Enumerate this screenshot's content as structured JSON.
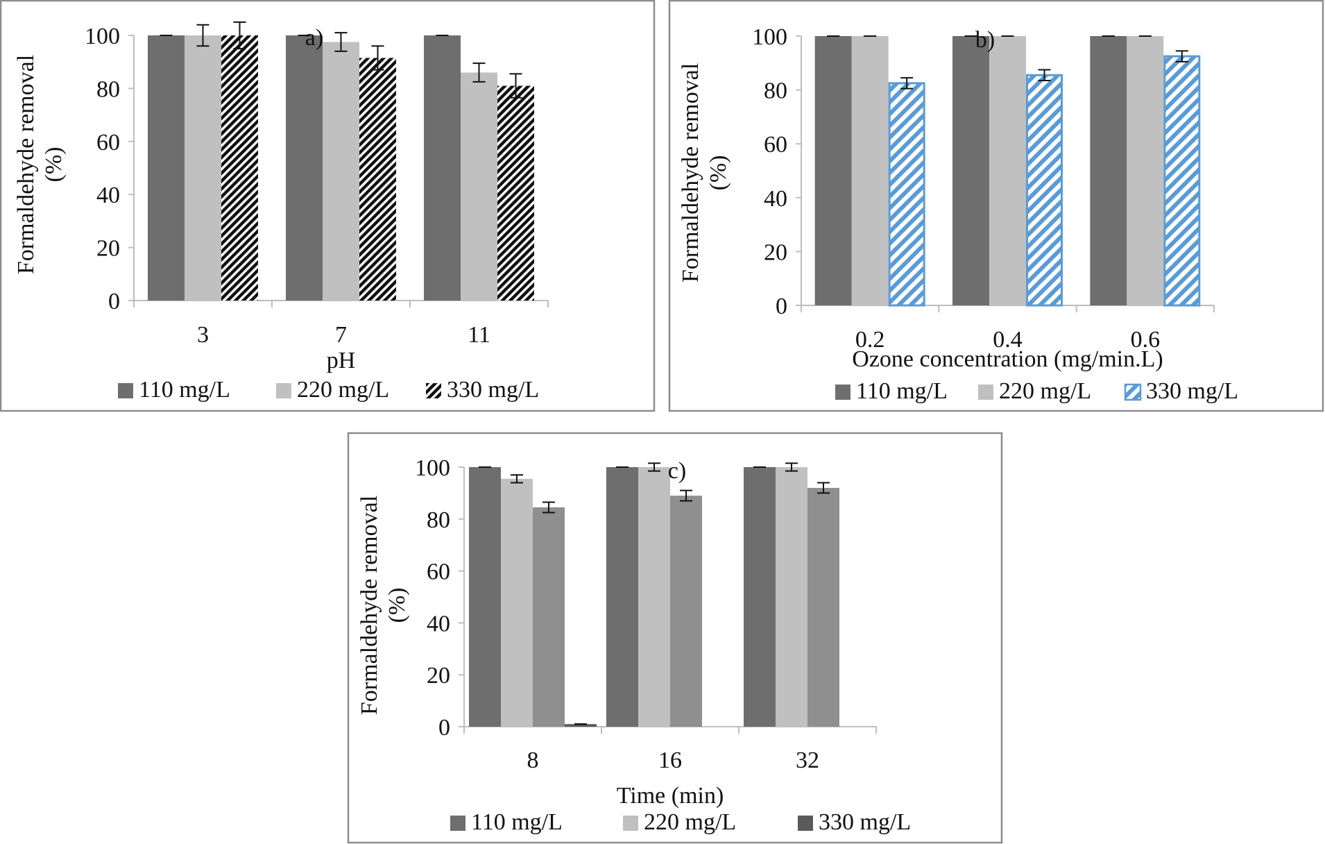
{
  "chart_data": [
    {
      "type": "bar",
      "panel_label": "a)",
      "xlabel": "pH",
      "ylabel_line1": "Formaldehyde removal",
      "ylabel_line2": "(%)",
      "ylim": [
        0,
        100
      ],
      "yticks": [
        "0",
        "20",
        "40",
        "60",
        "80",
        "100"
      ],
      "categories": [
        "3",
        "7",
        "11"
      ],
      "legend_position": "bottom",
      "series": [
        {
          "name": "110 mg/L",
          "values": [
            100,
            100,
            100
          ],
          "errors": [
            0,
            0,
            0
          ],
          "color": "#6e6e6e",
          "pattern": "solid"
        },
        {
          "name": "220 mg/L",
          "values": [
            100,
            97.5,
            86
          ],
          "errors": [
            4,
            3.5,
            3.5
          ],
          "color": "#c0c0c0",
          "pattern": "solid"
        },
        {
          "name": "330 mg/L",
          "values": [
            100,
            91.5,
            81
          ],
          "errors": [
            5,
            4.5,
            4.5
          ],
          "color": "#111111",
          "pattern": "black-diagonal"
        }
      ]
    },
    {
      "type": "bar",
      "panel_label": "b)",
      "xlabel": "Ozone concentration (mg/min.L)",
      "ylabel_line1": "Formaldehyde removal",
      "ylabel_line2": "(%)",
      "ylim": [
        0,
        100
      ],
      "yticks": [
        "0",
        "20",
        "40",
        "60",
        "80",
        "100"
      ],
      "categories": [
        "0.2",
        "0.4",
        "0.6"
      ],
      "legend_position": "bottom",
      "series": [
        {
          "name": "110 mg/L",
          "values": [
            100,
            100,
            100
          ],
          "errors": [
            0,
            0,
            0
          ],
          "color": "#6e6e6e",
          "pattern": "solid"
        },
        {
          "name": "220 mg/L",
          "values": [
            100,
            100,
            100
          ],
          "errors": [
            0,
            0,
            0
          ],
          "color": "#c0c0c0",
          "pattern": "solid"
        },
        {
          "name": "330 mg/L",
          "values": [
            82.5,
            85.5,
            92.5
          ],
          "errors": [
            2,
            2,
            2
          ],
          "color": "#5b9bd5",
          "pattern": "blue-diagonal"
        }
      ]
    },
    {
      "type": "bar",
      "panel_label": "c)",
      "xlabel": "Time (min)",
      "ylabel_line1": "Formaldehyde removal",
      "ylabel_line2": "(%)",
      "ylim": [
        0,
        100
      ],
      "yticks": [
        "0",
        "20",
        "40",
        "60",
        "80",
        "100"
      ],
      "categories": [
        "8",
        "16",
        "32"
      ],
      "legend_position": "bottom",
      "series": [
        {
          "name": "110 mg/L",
          "values": [
            100,
            100,
            100
          ],
          "errors": [
            0,
            0,
            0
          ],
          "color": "#6e6e6e",
          "pattern": "solid"
        },
        {
          "name": "220 mg/L",
          "values": [
            95.5,
            100,
            100
          ],
          "errors": [
            1.5,
            1.5,
            1.5
          ],
          "color": "#c0c0c0",
          "pattern": "solid"
        },
        {
          "name": "330 mg/L",
          "values": [
            84.5,
            89,
            92
          ],
          "errors": [
            2,
            2,
            2
          ],
          "color": "#8f8f8f",
          "pattern": "solid"
        },
        {
          "name": "330 mg/L",
          "values": [
            1,
            0,
            0
          ],
          "errors": [
            0,
            0,
            0
          ],
          "color": "#5a5a5a",
          "pattern": "solid"
        }
      ],
      "legend_series": [
        0,
        1,
        3
      ]
    }
  ]
}
